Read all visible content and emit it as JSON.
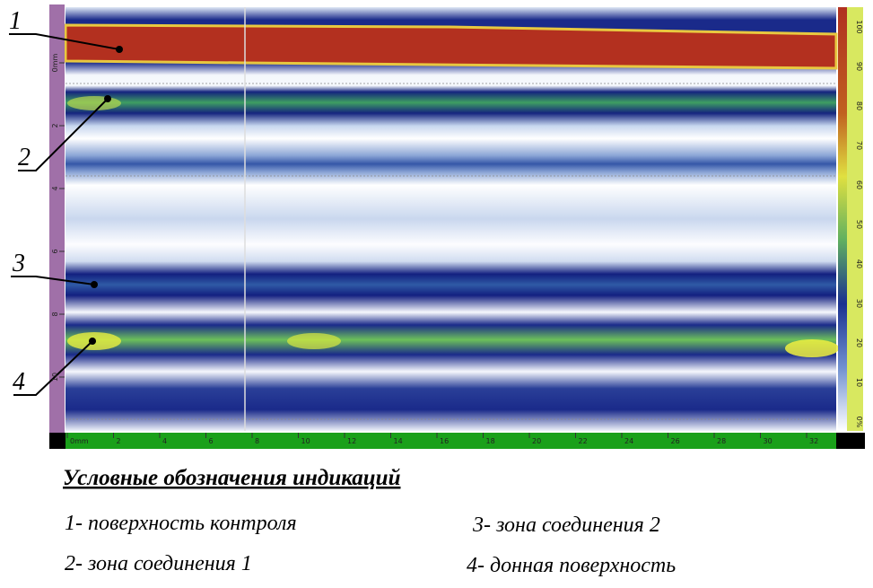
{
  "scan": {
    "depth_axis_labels": [
      "0mm",
      "2",
      "4",
      "6",
      "8",
      "10"
    ],
    "scan_axis_labels": [
      "0mm",
      "2",
      "4",
      "6",
      "8",
      "10",
      "12",
      "14",
      "16",
      "18",
      "20",
      "22",
      "24",
      "26",
      "28",
      "30",
      "32"
    ],
    "amplitude_scale_labels": [
      "100",
      "90",
      "80",
      "70",
      "60",
      "50",
      "40",
      "30",
      "20",
      "10",
      "0%"
    ],
    "callouts": [
      "1",
      "2",
      "3",
      "4"
    ]
  },
  "legend": {
    "title": "Условные обозначения индикаций",
    "items": [
      "1- поверхность контроля",
      "3- зона соединения 2",
      "2- зона соединения 1",
      "4- донная поверхность"
    ]
  }
}
